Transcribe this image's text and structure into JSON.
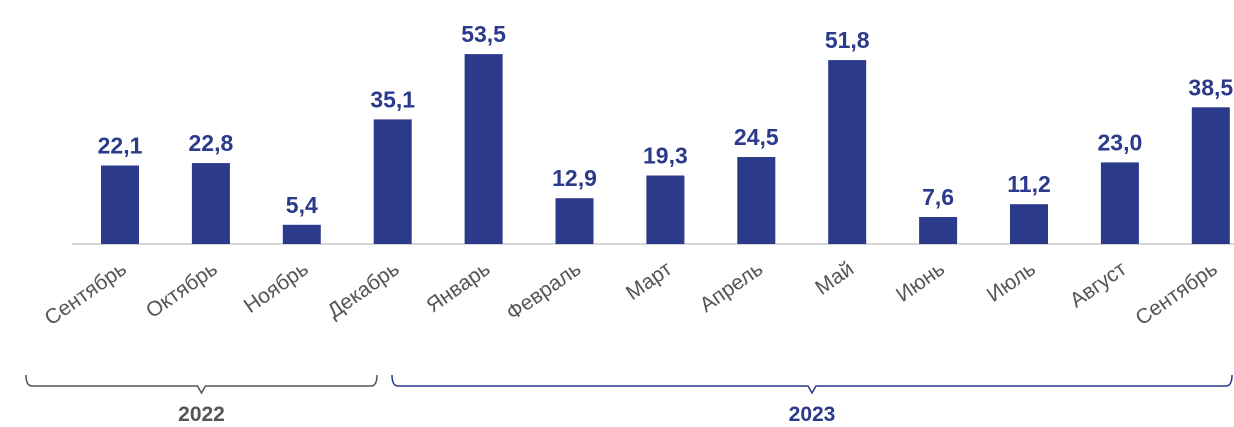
{
  "chart_data": {
    "type": "bar",
    "categories": [
      "Сентябрь",
      "Октябрь",
      "Ноябрь",
      "Декабрь",
      "Январь",
      "Февраль",
      "Март",
      "Апрель",
      "Май",
      "Июнь",
      "Июль",
      "Август",
      "Сентябрь"
    ],
    "values": [
      22.1,
      22.8,
      5.4,
      35.1,
      53.5,
      12.9,
      19.3,
      24.5,
      51.8,
      7.6,
      11.2,
      23.0,
      38.5
    ],
    "value_labels": [
      "22,1",
      "22,8",
      "5,4",
      "35,1",
      "53,5",
      "12,9",
      "19,3",
      "24,5",
      "51,8",
      "7,6",
      "11,2",
      "23,0",
      "38,5"
    ],
    "groups": [
      {
        "label": "2022",
        "from": 0,
        "to": 3
      },
      {
        "label": "2023",
        "from": 4,
        "to": 12
      }
    ],
    "title": "",
    "xlabel": "",
    "ylabel": "",
    "grid": false,
    "legend": "none",
    "colors": {
      "bar": "#2b3a8a",
      "value_label": "#2b3a8a",
      "category_label": "#555555",
      "group_2022": "#555555",
      "group_2023": "#2b3a8a"
    }
  }
}
